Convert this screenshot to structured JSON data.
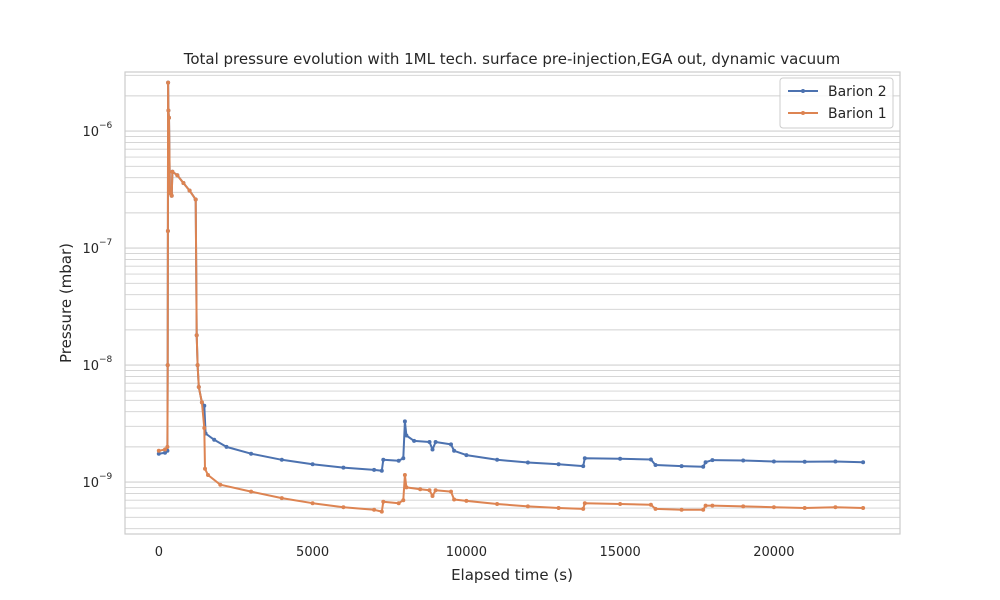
{
  "chart_data": {
    "type": "line",
    "title": "Total pressure evolution with 1ML tech. surface pre-injection,EGA out, dynamic vacuum",
    "xlabel": "Elapsed time (s)",
    "ylabel": "Pressure (mbar)",
    "xlim": [
      -1100,
      24100
    ],
    "ylim": [
      3.6e-10,
      3.2e-06
    ],
    "yscale": "log",
    "xticks": [
      0,
      5000,
      10000,
      15000,
      20000
    ],
    "xtick_labels": [
      "0",
      "5000",
      "10000",
      "15000",
      "20000"
    ],
    "ytick_mantissa": "10",
    "ytick_exponents": [
      "−9",
      "−8",
      "−7",
      "−6"
    ],
    "ytick_values": [
      1e-09,
      1e-08,
      1e-07,
      1e-06
    ],
    "grid": "horizontal-major-and-minor",
    "legend_position": "top-right",
    "series": [
      {
        "name": "Barion 2",
        "color": "#4c72b0",
        "points": [
          [
            0,
            1.75e-09
          ],
          [
            200,
            1.78e-09
          ],
          [
            280,
            1.85e-09
          ],
          [
            290,
            1e-08
          ],
          [
            295,
            1.4e-07
          ],
          [
            300,
            2.6e-06
          ],
          [
            310,
            1.5e-06
          ],
          [
            330,
            1.3e-06
          ],
          [
            360,
            3e-07
          ],
          [
            400,
            2.9e-07
          ],
          [
            420,
            2.8e-07
          ],
          [
            440,
            4.5e-07
          ],
          [
            600,
            4.2e-07
          ],
          [
            800,
            3.6e-07
          ],
          [
            1000,
            3.1e-07
          ],
          [
            1200,
            2.6e-07
          ],
          [
            1230,
            1.8e-08
          ],
          [
            1260,
            1e-08
          ],
          [
            1300,
            6.5e-09
          ],
          [
            1400,
            4.8e-09
          ],
          [
            1480,
            4.5e-09
          ],
          [
            1520,
            2.6e-09
          ],
          [
            1800,
            2.3e-09
          ],
          [
            2200,
            2e-09
          ],
          [
            3000,
            1.75e-09
          ],
          [
            4000,
            1.55e-09
          ],
          [
            5000,
            1.42e-09
          ],
          [
            6000,
            1.33e-09
          ],
          [
            7000,
            1.27e-09
          ],
          [
            7250,
            1.25e-09
          ],
          [
            7300,
            1.55e-09
          ],
          [
            7800,
            1.52e-09
          ],
          [
            7950,
            1.6e-09
          ],
          [
            8000,
            3.3e-09
          ],
          [
            8050,
            2.5e-09
          ],
          [
            8300,
            2.25e-09
          ],
          [
            8800,
            2.2e-09
          ],
          [
            8900,
            1.9e-09
          ],
          [
            9000,
            2.2e-09
          ],
          [
            9500,
            2.1e-09
          ],
          [
            9600,
            1.85e-09
          ],
          [
            10000,
            1.7e-09
          ],
          [
            11000,
            1.55e-09
          ],
          [
            12000,
            1.47e-09
          ],
          [
            13000,
            1.42e-09
          ],
          [
            13800,
            1.37e-09
          ],
          [
            13850,
            1.6e-09
          ],
          [
            15000,
            1.58e-09
          ],
          [
            16000,
            1.56e-09
          ],
          [
            16150,
            1.4e-09
          ],
          [
            17000,
            1.37e-09
          ],
          [
            17700,
            1.35e-09
          ],
          [
            17780,
            1.48e-09
          ],
          [
            18000,
            1.54e-09
          ],
          [
            19000,
            1.53e-09
          ],
          [
            20000,
            1.5e-09
          ],
          [
            21000,
            1.49e-09
          ],
          [
            22000,
            1.5e-09
          ],
          [
            22900,
            1.48e-09
          ]
        ]
      },
      {
        "name": "Barion 1",
        "color": "#dd8452",
        "points": [
          [
            0,
            1.85e-09
          ],
          [
            200,
            1.9e-09
          ],
          [
            280,
            2e-09
          ],
          [
            290,
            1e-08
          ],
          [
            295,
            1.4e-07
          ],
          [
            300,
            2.6e-06
          ],
          [
            310,
            1.5e-06
          ],
          [
            330,
            1.3e-06
          ],
          [
            360,
            3e-07
          ],
          [
            400,
            2.9e-07
          ],
          [
            420,
            2.8e-07
          ],
          [
            440,
            4.5e-07
          ],
          [
            600,
            4.2e-07
          ],
          [
            800,
            3.6e-07
          ],
          [
            1000,
            3.1e-07
          ],
          [
            1200,
            2.6e-07
          ],
          [
            1230,
            1.8e-08
          ],
          [
            1260,
            1e-08
          ],
          [
            1300,
            6.5e-09
          ],
          [
            1400,
            4.8e-09
          ],
          [
            1480,
            2.9e-09
          ],
          [
            1500,
            1.3e-09
          ],
          [
            1600,
            1.15e-09
          ],
          [
            2000,
            9.5e-10
          ],
          [
            3000,
            8.3e-10
          ],
          [
            4000,
            7.3e-10
          ],
          [
            5000,
            6.6e-10
          ],
          [
            6000,
            6.1e-10
          ],
          [
            7000,
            5.8e-10
          ],
          [
            7250,
            5.6e-10
          ],
          [
            7300,
            6.8e-10
          ],
          [
            7800,
            6.6e-10
          ],
          [
            7950,
            7e-10
          ],
          [
            8000,
            1.15e-09
          ],
          [
            8050,
            9e-10
          ],
          [
            8500,
            8.7e-10
          ],
          [
            8800,
            8.5e-10
          ],
          [
            8900,
            7.6e-10
          ],
          [
            9000,
            8.5e-10
          ],
          [
            9500,
            8.3e-10
          ],
          [
            9600,
            7.1e-10
          ],
          [
            10000,
            6.9e-10
          ],
          [
            11000,
            6.5e-10
          ],
          [
            12000,
            6.2e-10
          ],
          [
            13000,
            6e-10
          ],
          [
            13800,
            5.9e-10
          ],
          [
            13850,
            6.6e-10
          ],
          [
            15000,
            6.5e-10
          ],
          [
            16000,
            6.4e-10
          ],
          [
            16150,
            5.9e-10
          ],
          [
            17000,
            5.8e-10
          ],
          [
            17700,
            5.8e-10
          ],
          [
            17780,
            6.3e-10
          ],
          [
            18000,
            6.3e-10
          ],
          [
            19000,
            6.2e-10
          ],
          [
            20000,
            6.1e-10
          ],
          [
            21000,
            6e-10
          ],
          [
            22000,
            6.1e-10
          ],
          [
            22900,
            6e-10
          ]
        ]
      }
    ]
  }
}
